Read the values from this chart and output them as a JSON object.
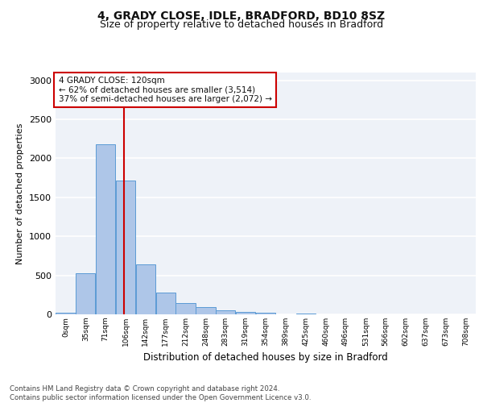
{
  "title1": "4, GRADY CLOSE, IDLE, BRADFORD, BD10 8SZ",
  "title2": "Size of property relative to detached houses in Bradford",
  "xlabel": "Distribution of detached houses by size in Bradford",
  "ylabel": "Number of detached properties",
  "annotation_line1": "4 GRADY CLOSE: 120sqm",
  "annotation_line2": "← 62% of detached houses are smaller (3,514)",
  "annotation_line3": "37% of semi-detached houses are larger (2,072) →",
  "bin_starts": [
    0,
    35,
    70,
    105,
    140,
    175,
    210,
    245,
    280,
    315,
    350,
    385,
    420,
    455,
    490,
    525,
    560,
    595,
    630,
    665,
    700
  ],
  "bin_width": 35,
  "bar_labels": [
    "0sqm",
    "35sqm",
    "71sqm",
    "106sqm",
    "142sqm",
    "177sqm",
    "212sqm",
    "248sqm",
    "283sqm",
    "319sqm",
    "354sqm",
    "389sqm",
    "425sqm",
    "460sqm",
    "496sqm",
    "531sqm",
    "566sqm",
    "602sqm",
    "637sqm",
    "673sqm",
    "708sqm"
  ],
  "values": [
    25,
    530,
    2185,
    1715,
    640,
    280,
    145,
    90,
    55,
    35,
    20,
    5,
    15,
    5,
    0,
    0,
    0,
    0,
    0,
    0,
    0
  ],
  "bar_color": "#aec6e8",
  "bar_edge_color": "#5b9bd5",
  "vline_color": "#cc0000",
  "vline_x": 120,
  "background_color": "#eef2f8",
  "grid_color": "#ffffff",
  "ylim": [
    0,
    3100
  ],
  "yticks": [
    0,
    500,
    1000,
    1500,
    2000,
    2500,
    3000
  ],
  "footer1": "Contains HM Land Registry data © Crown copyright and database right 2024.",
  "footer2": "Contains public sector information licensed under the Open Government Licence v3.0."
}
